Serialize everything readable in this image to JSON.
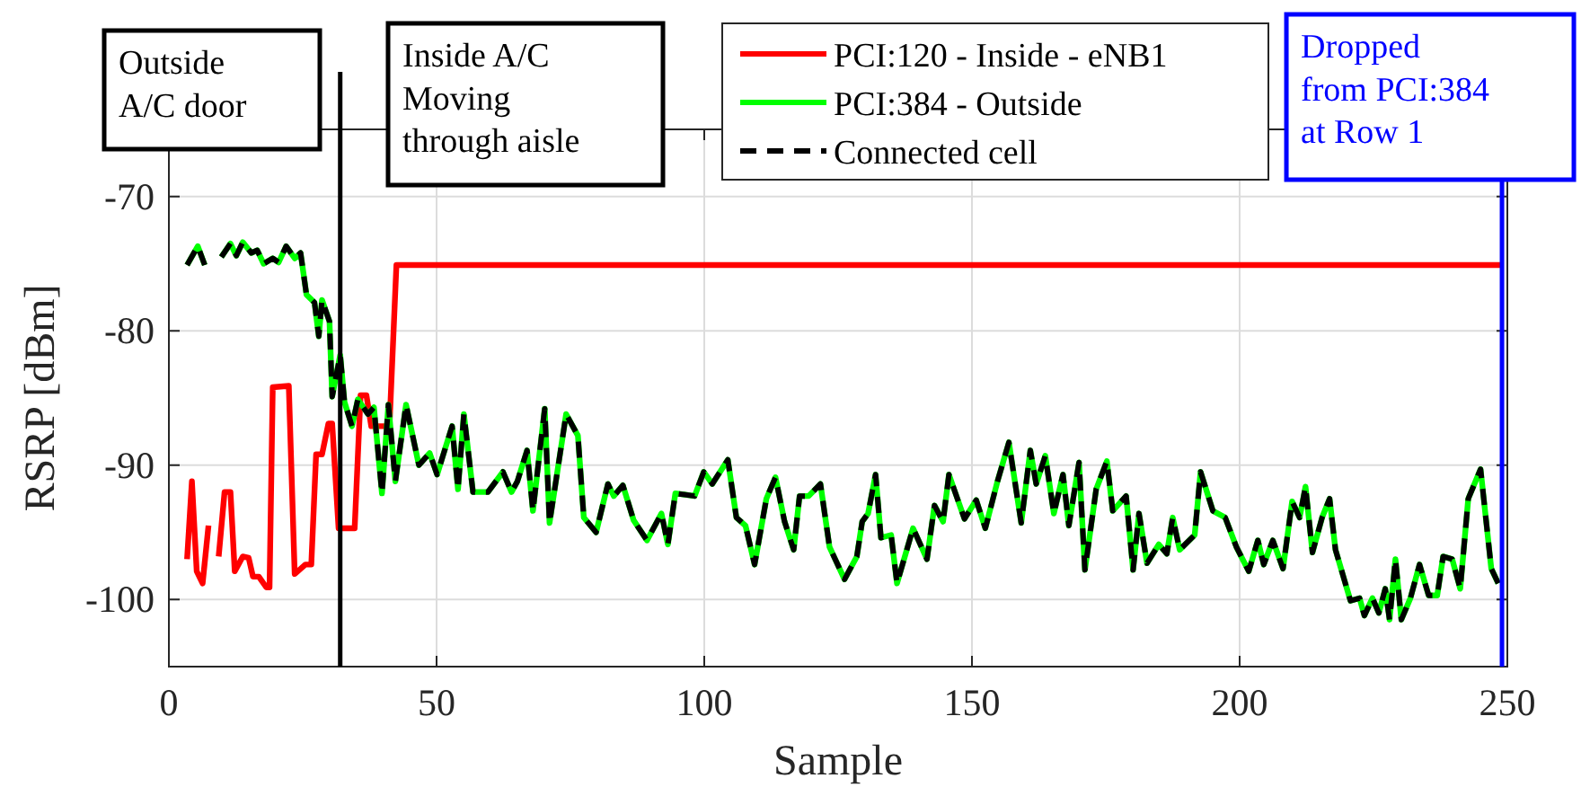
{
  "chart_data": {
    "type": "line",
    "xlabel": "Sample",
    "ylabel": "RSRP [dBm]",
    "xlim": [
      0,
      250
    ],
    "ylim": [
      -105,
      -65
    ],
    "xticks": [
      0,
      50,
      100,
      150,
      200,
      250
    ],
    "yticks": [
      -100,
      -90,
      -80,
      -70
    ],
    "grid": true,
    "legend": "top",
    "marker": "none",
    "annotations": [
      "Outside\nA/C door",
      "Inside A/C\nMoving\nthrough aisle",
      "Dropped\nfrom PCI:384\nat Row 1"
    ],
    "ref_lines": [
      {
        "axis": "x",
        "value": 32,
        "color": "#000000"
      },
      {
        "axis": "x",
        "value": 249,
        "color": "#0000ff"
      }
    ],
    "series": [
      {
        "name": "PCI:120 - Inside - eNB1",
        "color": "#ff0000",
        "line_style": "solid",
        "x": [
          3.4,
          4.3,
          5.2,
          6.3,
          7.4,
          8.4,
          9.3,
          10.4,
          11.5,
          12.3,
          13.8,
          14.9,
          15.7,
          16.8,
          18.2,
          18.8,
          19.4,
          22.4,
          23.5,
          25.5,
          26.6,
          27.5,
          28.6,
          29.8,
          30.5,
          31.7,
          34.7,
          35.8,
          36.9,
          37.8,
          41.2,
          42.5,
          248.7
        ],
        "values": [
          -97,
          -91.2,
          -97.9,
          -98.8,
          -94.5,
          null,
          -96.8,
          -92,
          -92,
          -97.9,
          -96.8,
          -96.9,
          -98.3,
          -98.3,
          -99.1,
          -99.1,
          -84.2,
          -84.1,
          -98.1,
          -97.4,
          -97.4,
          -89.2,
          -89.2,
          -86.9,
          -86.9,
          -94.7,
          -94.7,
          -84.8,
          -84.8,
          -87.1,
          -87.1,
          -75.1,
          -75.1
        ]
      },
      {
        "name": "PCI:384 - Outside",
        "color": "#00ff00",
        "line_style": "solid",
        "x": [
          3.4,
          5.4,
          6.7,
          8.2,
          9.8,
          11.5,
          12.6,
          13.8,
          15.4,
          16.5,
          17.7,
          19.4,
          20.5,
          21.9,
          23.5,
          24.6,
          25.7,
          27.2,
          28,
          28.6,
          30,
          30.5,
          32,
          32.8,
          34.2,
          35.3,
          37.2,
          38.3,
          39.8,
          41,
          42.3,
          44.3,
          46.7,
          48.7,
          50.1,
          52.9,
          54,
          55.1,
          56.8,
          59.6,
          62.4,
          64,
          65.1,
          66.9,
          68,
          70.2,
          71.1,
          74.2,
          76.4,
          77.5,
          79.8,
          82,
          83.1,
          84.8,
          86.8,
          89.3,
          92,
          93.2,
          94.6,
          98.2,
          99.9,
          101.5,
          104.4,
          106,
          107.7,
          109.4,
          111.6,
          113.3,
          115,
          116.7,
          117.8,
          119.5,
          121.7,
          123.4,
          126.2,
          128.5,
          129.5,
          130.6,
          132,
          133,
          134.9,
          136,
          139,
          141.6,
          143,
          144.6,
          145.7,
          148.6,
          150.8,
          152.5,
          154.7,
          156.9,
          159.2,
          160.9,
          162,
          163.7,
          165.3,
          167,
          168.1,
          170,
          171.1,
          173.2,
          175.2,
          176.3,
          178.8,
          180.1,
          181.2,
          182.7,
          184.9,
          186.4,
          187.5,
          188.8,
          191.6,
          192.7,
          195,
          197.3,
          199.4,
          201.7,
          203.4,
          204.5,
          206.2,
          208.1,
          209.8,
          211.2,
          212.3,
          213.6,
          215.4,
          216.8,
          217.9,
          220.7,
          222.4,
          223.3,
          224.8,
          226,
          227.2,
          228,
          229.1,
          230.2,
          231.9,
          233.6,
          235.3,
          236.9,
          238,
          239.7,
          241.2,
          242.7,
          245,
          247,
          248.3
        ],
        "values": [
          -75.1,
          -73.7,
          -75.1,
          null,
          -74.5,
          -73.5,
          -74.4,
          -73.4,
          -74.2,
          -74,
          -75,
          -74.6,
          -74.9,
          -73.7,
          -74.6,
          -74.2,
          -77.3,
          -77.9,
          -80.4,
          -77.7,
          -79.3,
          -84.9,
          -81.8,
          -85.3,
          -87.1,
          -85.1,
          -86.2,
          -85.7,
          -92.1,
          -85.5,
          -91.2,
          -85.5,
          -90,
          -89.1,
          -90.7,
          -87.1,
          -91.8,
          -86.2,
          -92,
          -92,
          -90.5,
          -92,
          -91.2,
          -88.9,
          -93.4,
          -85.8,
          -94.3,
          -86.2,
          -87.8,
          -93.9,
          -95,
          -91.4,
          -92.3,
          -91.5,
          -94.1,
          -95.6,
          -93.6,
          -95.9,
          -92.1,
          -92.3,
          -90.5,
          -91.4,
          -89.6,
          -93.9,
          -94.5,
          -97.4,
          -92.5,
          -90.9,
          -94.2,
          -96.3,
          -92.3,
          -92.3,
          -91.4,
          -96.1,
          -98.5,
          -96.8,
          -94.2,
          -93.6,
          -90.7,
          -95.4,
          -95.2,
          -98.8,
          -94.7,
          -97,
          -93,
          -94.2,
          -90.7,
          -94,
          -92.6,
          -94.7,
          -91.3,
          -88.3,
          -94.3,
          -88.9,
          -91.4,
          -89.3,
          -93.6,
          -90.7,
          -94.5,
          -89.8,
          -97.8,
          -91.8,
          -89.7,
          -93.4,
          -92.3,
          -97.8,
          -93.6,
          -97.3,
          -95.9,
          -96.6,
          -93.9,
          -96.3,
          -95.2,
          -90.5,
          -93.4,
          -93.9,
          -96.1,
          -97.9,
          -95.6,
          -97.4,
          -95.6,
          -97.7,
          -92.7,
          -93.9,
          -91.6,
          -96.5,
          -93.9,
          -92.5,
          -96.3,
          -100.1,
          -99.9,
          -101.2,
          -99.9,
          -101,
          -99.2,
          -101.5,
          -97,
          -101.5,
          -99.9,
          -97.4,
          -99.7,
          -99.7,
          -96.8,
          -97,
          -99.2,
          -92.5,
          -90.3,
          -97.7,
          -98.8
        ]
      },
      {
        "name": "Connected cell",
        "color": "#000000",
        "line_style": "dashed",
        "x": [
          3.4,
          5.4,
          6.7,
          8.2,
          9.8,
          11.5,
          12.6,
          13.8,
          15.4,
          16.5,
          17.7,
          19.4,
          20.5,
          21.9,
          23.5,
          24.6,
          25.7,
          27.2,
          28,
          28.6,
          30,
          30.5,
          32,
          32.8,
          34.2,
          35.3,
          37.2,
          38.3,
          39.8,
          41,
          42.3,
          44.3,
          46.7,
          48.7,
          50.1,
          52.9,
          54,
          55.1,
          56.8,
          59.6,
          62.4,
          64,
          65.1,
          66.9,
          68,
          70.2,
          71.1,
          74.2,
          76.4,
          77.5,
          79.8,
          82,
          83.1,
          84.8,
          86.8,
          89.3,
          92,
          93.2,
          94.6,
          98.2,
          99.9,
          101.5,
          104.4,
          106,
          107.7,
          109.4,
          111.6,
          113.3,
          115,
          116.7,
          117.8,
          119.5,
          121.7,
          123.4,
          126.2,
          128.5,
          129.5,
          130.6,
          132,
          133,
          134.9,
          136,
          139,
          141.6,
          143,
          144.6,
          145.7,
          148.6,
          150.8,
          152.5,
          154.7,
          156.9,
          159.2,
          160.9,
          162,
          163.7,
          165.3,
          167,
          168.1,
          170,
          171.1,
          173.2,
          175.2,
          176.3,
          178.8,
          180.1,
          181.2,
          182.7,
          184.9,
          186.4,
          187.5,
          188.8,
          191.6,
          192.7,
          195,
          197.3,
          199.4,
          201.7,
          203.4,
          204.5,
          206.2,
          208.1,
          209.8,
          211.2,
          212.3,
          213.6,
          215.4,
          216.8,
          217.9,
          220.7,
          222.4,
          223.3,
          224.8,
          226,
          227.2,
          228,
          229.1,
          230.2,
          231.9,
          233.6,
          235.3,
          236.9,
          238,
          239.7,
          241.2,
          242.7,
          245,
          247,
          248.3
        ],
        "values": [
          -75.1,
          -73.7,
          -75.1,
          null,
          -74.5,
          -73.5,
          -74.4,
          -73.4,
          -74.2,
          -74,
          -75,
          -74.6,
          -74.9,
          -73.7,
          -74.6,
          -74.2,
          -77.3,
          -77.9,
          -80.4,
          -77.7,
          -79.3,
          -84.9,
          -81.8,
          -85.3,
          -87.1,
          -85.1,
          -86.2,
          -85.7,
          -92.1,
          -85.5,
          -91.2,
          -85.5,
          -90,
          -89.1,
          -90.7,
          -87.1,
          -91.8,
          -86.2,
          -92,
          -92,
          -90.5,
          -92,
          -91.2,
          -88.9,
          -93.4,
          -85.8,
          -94.3,
          -86.2,
          -87.8,
          -93.9,
          -95,
          -91.4,
          -92.3,
          -91.5,
          -94.1,
          -95.6,
          -93.6,
          -95.9,
          -92.1,
          -92.3,
          -90.5,
          -91.4,
          -89.6,
          -93.9,
          -94.5,
          -97.4,
          -92.5,
          -90.9,
          -94.2,
          -96.3,
          -92.3,
          -92.3,
          -91.4,
          -96.1,
          -98.5,
          -96.8,
          -94.2,
          -93.6,
          -90.7,
          -95.4,
          -95.2,
          -98.8,
          -94.7,
          -97,
          -93,
          -94.2,
          -90.7,
          -94,
          -92.6,
          -94.7,
          -91.3,
          -88.3,
          -94.3,
          -88.9,
          -91.4,
          -89.3,
          -93.6,
          -90.7,
          -94.5,
          -89.8,
          -97.8,
          -91.8,
          -89.7,
          -93.4,
          -92.3,
          -97.8,
          -93.6,
          -97.3,
          -95.9,
          -96.6,
          -93.9,
          -96.3,
          -95.2,
          -90.5,
          -93.4,
          -93.9,
          -96.1,
          -97.9,
          -95.6,
          -97.4,
          -95.6,
          -97.7,
          -92.7,
          -93.9,
          -91.6,
          -96.5,
          -93.9,
          -92.5,
          -96.3,
          -100.1,
          -99.9,
          -101.2,
          -99.9,
          -101,
          -99.2,
          -101.5,
          -97,
          -101.5,
          -99.9,
          -97.4,
          -99.7,
          -99.7,
          -96.8,
          -97,
          -99.2,
          -92.5,
          -90.3,
          -97.7,
          -98.8
        ]
      }
    ]
  }
}
